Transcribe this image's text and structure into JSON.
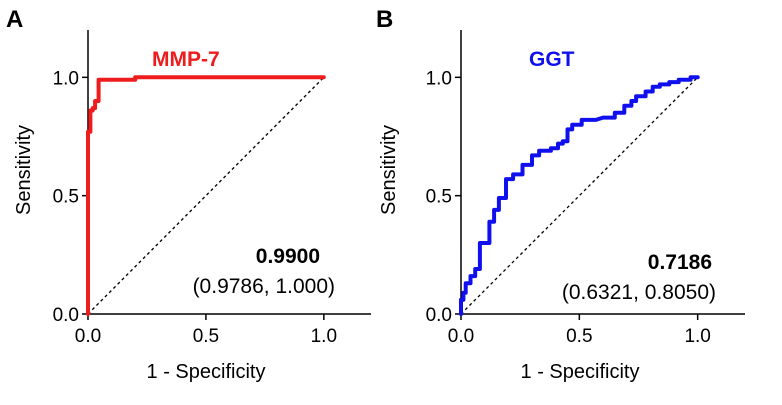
{
  "chart_data": [
    {
      "type": "line",
      "panel_label": "A",
      "title": "MMP-7",
      "color": "#ee1c1c",
      "xlabel": "1 - Specificity",
      "ylabel": "Sensitivity",
      "xlim": [
        0,
        1.2
      ],
      "ylim": [
        0,
        1.2
      ],
      "x_ticks": [
        "0.0",
        "0.5",
        "1.0"
      ],
      "y_ticks": [
        "0.0",
        "0.5",
        "1.0"
      ],
      "auc": "0.9900",
      "auc_ci": "(0.9786, 1.000)",
      "diagonal": true,
      "series": [
        {
          "x": [
            0,
            0,
            0.01,
            0.01,
            0.01,
            0.01,
            0.02,
            0.02,
            0.03,
            0.03,
            0.045,
            0.045,
            0.06,
            0.2,
            0.2,
            1.0
          ],
          "y": [
            0,
            0.77,
            0.77,
            0.8,
            0.82,
            0.86,
            0.86,
            0.87,
            0.87,
            0.9,
            0.9,
            0.99,
            0.99,
            0.99,
            1.0,
            1.0
          ]
        }
      ]
    },
    {
      "type": "line",
      "panel_label": "B",
      "title": "GGT",
      "color": "#1010ee",
      "xlabel": "1 - Specificity",
      "ylabel": "Sensitivity",
      "xlim": [
        0,
        1.2
      ],
      "ylim": [
        0,
        1.2
      ],
      "x_ticks": [
        "0.0",
        "0.5",
        "1.0"
      ],
      "y_ticks": [
        "0.0",
        "0.5",
        "1.0"
      ],
      "auc": "0.7186",
      "auc_ci": "(0.6321, 0.8050)",
      "diagonal": true,
      "series": [
        {
          "x": [
            0,
            0,
            0.01,
            0.01,
            0.02,
            0.02,
            0.04,
            0.04,
            0.06,
            0.06,
            0.08,
            0.08,
            0.12,
            0.12,
            0.14,
            0.14,
            0.16,
            0.16,
            0.19,
            0.19,
            0.22,
            0.22,
            0.26,
            0.26,
            0.3,
            0.3,
            0.33,
            0.33,
            0.38,
            0.38,
            0.41,
            0.41,
            0.43,
            0.43,
            0.45,
            0.45,
            0.47,
            0.47,
            0.51,
            0.51,
            0.57,
            0.57,
            0.6,
            0.65,
            0.65,
            0.69,
            0.69,
            0.72,
            0.72,
            0.74,
            0.74,
            0.78,
            0.78,
            0.81,
            0.81,
            0.84,
            0.84,
            0.88,
            0.88,
            0.92,
            0.92,
            0.97,
            0.97,
            0.98,
            0.98,
            1.0
          ],
          "y": [
            0,
            0.06,
            0.06,
            0.09,
            0.09,
            0.13,
            0.13,
            0.16,
            0.16,
            0.19,
            0.19,
            0.3,
            0.3,
            0.39,
            0.39,
            0.44,
            0.44,
            0.49,
            0.49,
            0.57,
            0.57,
            0.59,
            0.59,
            0.63,
            0.63,
            0.67,
            0.67,
            0.69,
            0.69,
            0.7,
            0.7,
            0.72,
            0.72,
            0.73,
            0.73,
            0.78,
            0.78,
            0.8,
            0.8,
            0.82,
            0.82,
            0.82,
            0.83,
            0.83,
            0.85,
            0.85,
            0.88,
            0.88,
            0.9,
            0.9,
            0.92,
            0.92,
            0.94,
            0.94,
            0.96,
            0.96,
            0.97,
            0.97,
            0.98,
            0.98,
            0.99,
            0.99,
            1.0,
            1.0,
            1.0,
            1.0
          ]
        }
      ]
    }
  ]
}
